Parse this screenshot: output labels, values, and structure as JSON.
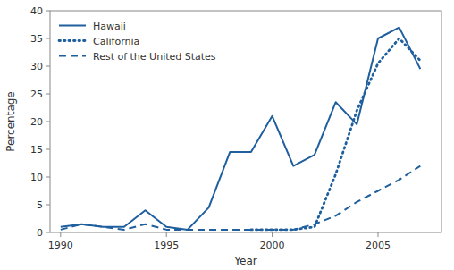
{
  "chart_data": {
    "type": "line",
    "x": [
      1990,
      1991,
      1992,
      1993,
      1994,
      1995,
      1996,
      1997,
      1998,
      1999,
      2000,
      2001,
      2002,
      2003,
      2004,
      2005,
      2006,
      2007
    ],
    "series": [
      {
        "name": "Hawaii",
        "color": "#1f5f9e",
        "line_style": "solid",
        "values": [
          1.0,
          1.5,
          1.0,
          1.0,
          4.0,
          1.0,
          0.5,
          4.5,
          14.5,
          14.5,
          21.0,
          12.0,
          14.0,
          23.5,
          19.5,
          35.0,
          37.0,
          29.5
        ]
      },
      {
        "name": "California",
        "color": "#1f5f9e",
        "line_style": "dotted",
        "values": [
          null,
          null,
          null,
          null,
          null,
          null,
          null,
          null,
          null,
          0.5,
          0.5,
          0.5,
          1.0,
          10.5,
          22.0,
          30.5,
          35.0,
          31.0
        ]
      },
      {
        "name": "Rest of the United States",
        "color": "#1f5f9e",
        "line_style": "dashed",
        "values": [
          0.5,
          1.5,
          1.0,
          0.5,
          1.5,
          0.5,
          0.5,
          0.5,
          0.5,
          0.5,
          0.5,
          0.5,
          1.5,
          3.0,
          5.5,
          7.5,
          9.5,
          12.0
        ]
      }
    ],
    "xlabel": "Year",
    "ylabel": "Percentage",
    "xlim": [
      1989.5,
      2008.0
    ],
    "ylim": [
      0,
      40
    ],
    "xticks": [
      1990,
      1995,
      2000,
      2005
    ],
    "yticks": [
      0,
      5,
      10,
      15,
      20,
      25,
      30,
      35,
      40
    ],
    "grid": false,
    "legend": "upper left"
  }
}
